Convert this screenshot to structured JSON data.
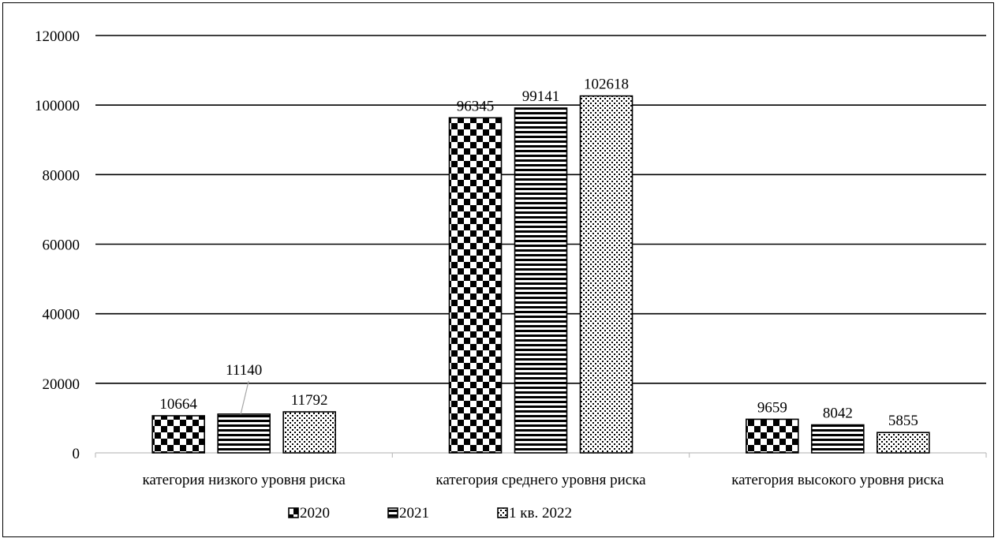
{
  "chart_data": {
    "type": "bar",
    "categories": [
      "категория низкого уровня риска",
      "категория среднего уровня риска",
      "категория высокого уровня риска"
    ],
    "series": [
      {
        "name": "2020",
        "values": [
          10664,
          96345,
          9659
        ],
        "pattern": "checker"
      },
      {
        "name": "2021",
        "values": [
          11140,
          99141,
          8042
        ],
        "pattern": "stripes"
      },
      {
        "name": "1 кв. 2022",
        "values": [
          11792,
          102618,
          5855
        ],
        "pattern": "dots"
      }
    ],
    "ylim": [
      0,
      120000
    ],
    "yticks": [
      "0",
      "20000",
      "40000",
      "60000",
      "80000",
      "100000",
      "120000"
    ],
    "grid": true,
    "legend_position": "bottom",
    "colors": {
      "ink": "#000000",
      "background": "#ffffff"
    }
  }
}
